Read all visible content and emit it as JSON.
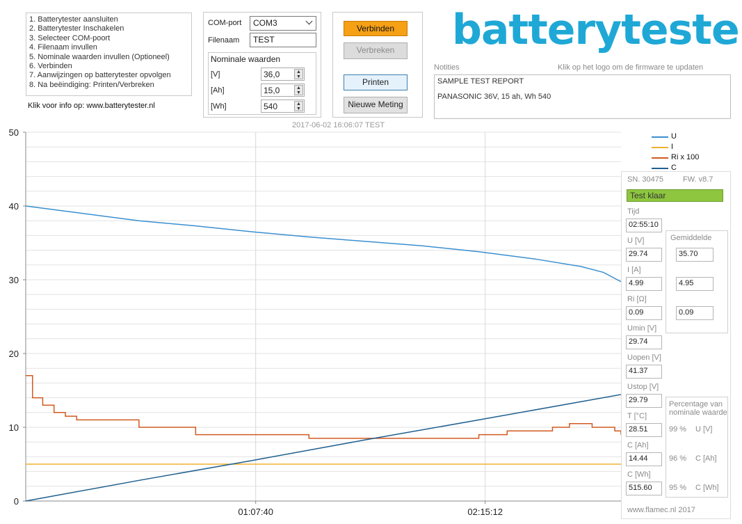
{
  "instructions": [
    "1. Batterytester aansluiten",
    "2. Batterytester Inschakelen",
    "3. Selecteer COM-poort",
    "4. Filenaam invullen",
    "5. Nominale waarden invullen (Optioneel)",
    "6. Verbinden",
    "7. Aanwijzingen op batterytester opvolgen",
    "8. Na beëindiging: Printen/Verbreken"
  ],
  "info_link": "Klik voor info op: www.batterytester.nl",
  "connection": {
    "com_label": "COM-port",
    "com_value": "COM3",
    "file_label": "Filenaam",
    "file_value": "TEST"
  },
  "nominal": {
    "title": "Nominale waarden",
    "v_label": "[V]",
    "v_value": "36,0",
    "ah_label": "[Ah]",
    "ah_value": "15,0",
    "wh_label": "[Wh]",
    "wh_value": "540"
  },
  "buttons": {
    "connect": "Verbinden",
    "disconnect": "Verbreken",
    "print": "Printen",
    "new_measurement": "Nieuwe Meting"
  },
  "logo_text": "batterytester",
  "notes_label": "Notities",
  "firmware_hint": "Klik op het logo om de firmware te updaten",
  "notes_lines": [
    "SAMPLE TEST REPORT",
    "PANASONIC 36V, 15 ah, Wh 540"
  ],
  "chart_title": "2017-06-02 16:06:07 TEST",
  "legend": [
    {
      "name": "U",
      "color": "#3a8fd0"
    },
    {
      "name": "I",
      "color": "#f0b030"
    },
    {
      "name": "Ri x 100",
      "color": "#d05a20"
    },
    {
      "name": "C",
      "color": "#1f5f8f"
    }
  ],
  "status": {
    "sn": "SN.  30475",
    "fw": "FW.  v8.7",
    "state": "Test klaar",
    "state_color": "#8ec63f"
  },
  "readings": {
    "tijd_label": "Tijd",
    "tijd": "02:55:10",
    "u_label": "U [V]",
    "u": "29.74",
    "i_label": "I [A]",
    "i": "4.99",
    "ri_label": "Ri [Ω]",
    "ri": "0.09",
    "umin_label": "Umin [V]",
    "umin": "29.74",
    "uopen_label": "Uopen [V]",
    "uopen": "41.37",
    "ustop_label": "Ustop [V]",
    "ustop": "29.79",
    "t_label": "T [°C]",
    "t": "28.51",
    "cah_label": "C [Ah]",
    "cah": "14.44",
    "cwh_label": "C [Wh]",
    "cwh": "515.60"
  },
  "average": {
    "title": "Gemiddelde",
    "u": "35.70",
    "i": "4.95",
    "ri": "0.09"
  },
  "percentage": {
    "title": "Percentage van nominale waarde",
    "rows": [
      {
        "pct": "99 %",
        "unit": "U [V]"
      },
      {
        "pct": "96 %",
        "unit": "C [Ah]"
      },
      {
        "pct": "95 %",
        "unit": "C [Wh]"
      }
    ]
  },
  "footer": "www.flamec.nl  2017",
  "chart_data": {
    "type": "line",
    "title": "2017-06-02 16:06:07 TEST",
    "ylim": [
      0,
      50
    ],
    "y_ticks": [
      0,
      10,
      20,
      30,
      40,
      50
    ],
    "x_ticks": [
      "01:07:40",
      "02:15:12"
    ],
    "x_tick_seconds": [
      4060,
      8112
    ],
    "x_range_seconds": [
      0,
      10510
    ],
    "grid": true,
    "legend_position": "top-right",
    "series": [
      {
        "name": "U",
        "color": "#3a8fd0",
        "x": [
          0,
          1000,
          2000,
          3000,
          4000,
          5000,
          6000,
          7000,
          8000,
          9000,
          9800,
          10200,
          10510
        ],
        "y": [
          40.0,
          39.0,
          38.0,
          37.3,
          36.5,
          35.8,
          35.2,
          34.6,
          33.8,
          32.8,
          31.8,
          31.0,
          29.74
        ]
      },
      {
        "name": "I",
        "color": "#f0b030",
        "x": [
          0,
          10510
        ],
        "y": [
          5.0,
          5.0
        ]
      },
      {
        "name": "Ri x 100",
        "color": "#d05a20",
        "x": [
          0,
          60,
          120,
          300,
          500,
          700,
          900,
          1200,
          2000,
          2700,
          3000,
          3800,
          4000,
          5000,
          6000,
          7000,
          8000,
          8500,
          9300,
          9600,
          10000,
          10400,
          10510
        ],
        "y": [
          17,
          17,
          14,
          13,
          12,
          11.5,
          11,
          11,
          10,
          10,
          9,
          9,
          9,
          8.5,
          8.5,
          8.5,
          9,
          9.5,
          10,
          10.5,
          10,
          9.5,
          9
        ]
      },
      {
        "name": "C",
        "color": "#1f5f8f",
        "x": [
          0,
          2000,
          4000,
          6000,
          8000,
          10510
        ],
        "y": [
          0,
          2.8,
          5.5,
          8.3,
          11.0,
          14.44
        ]
      }
    ]
  }
}
